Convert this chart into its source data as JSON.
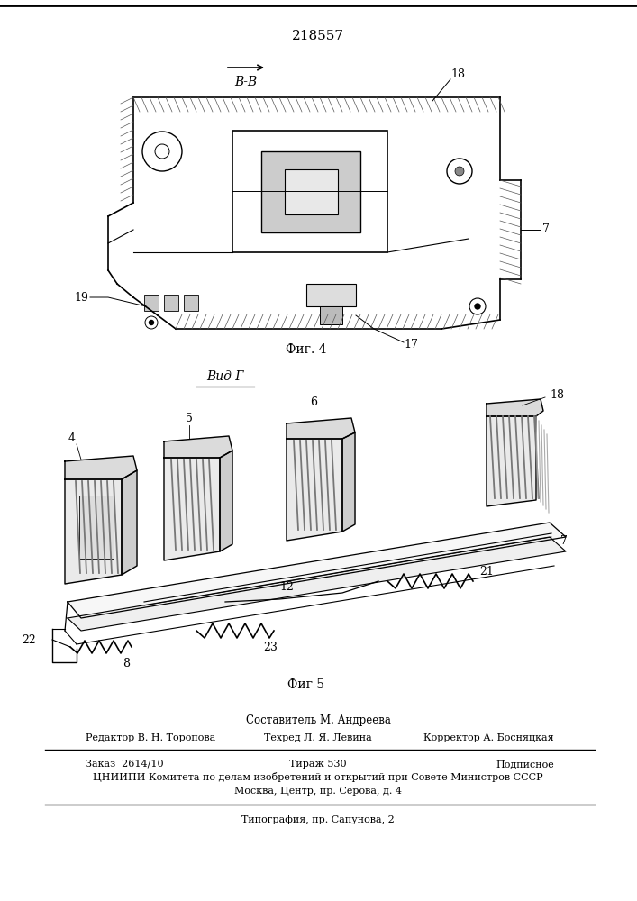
{
  "patent_number": "218557",
  "background_color": "#ffffff",
  "fig_width": 7.07,
  "fig_height": 10.0,
  "dpi": 100,
  "fig4_label": "Фиг. 4",
  "fig5_label": "Фиг 5",
  "view_label_top": "В-В",
  "view_label_bottom": "Вид Г",
  "footer_line1": "Составитель М. Андреева",
  "footer_editor": "Редактор В. Н. Торопова",
  "footer_techred": "Техред Л. Я. Левина",
  "footer_corrector": "Корректор А. Босняцкая",
  "footer_order": "Заказ  2614/10",
  "footer_tirazh": "Тираж 530",
  "footer_podpisnoe": "Подписное",
  "footer_org": "ЦНИИПИ Комитета по делам изобретений и открытий при Совете Министров СССР",
  "footer_address": "Москва, Центр, пр. Серова, д. 4",
  "footer_typography": "Типография, пр. Сапунова, 2"
}
